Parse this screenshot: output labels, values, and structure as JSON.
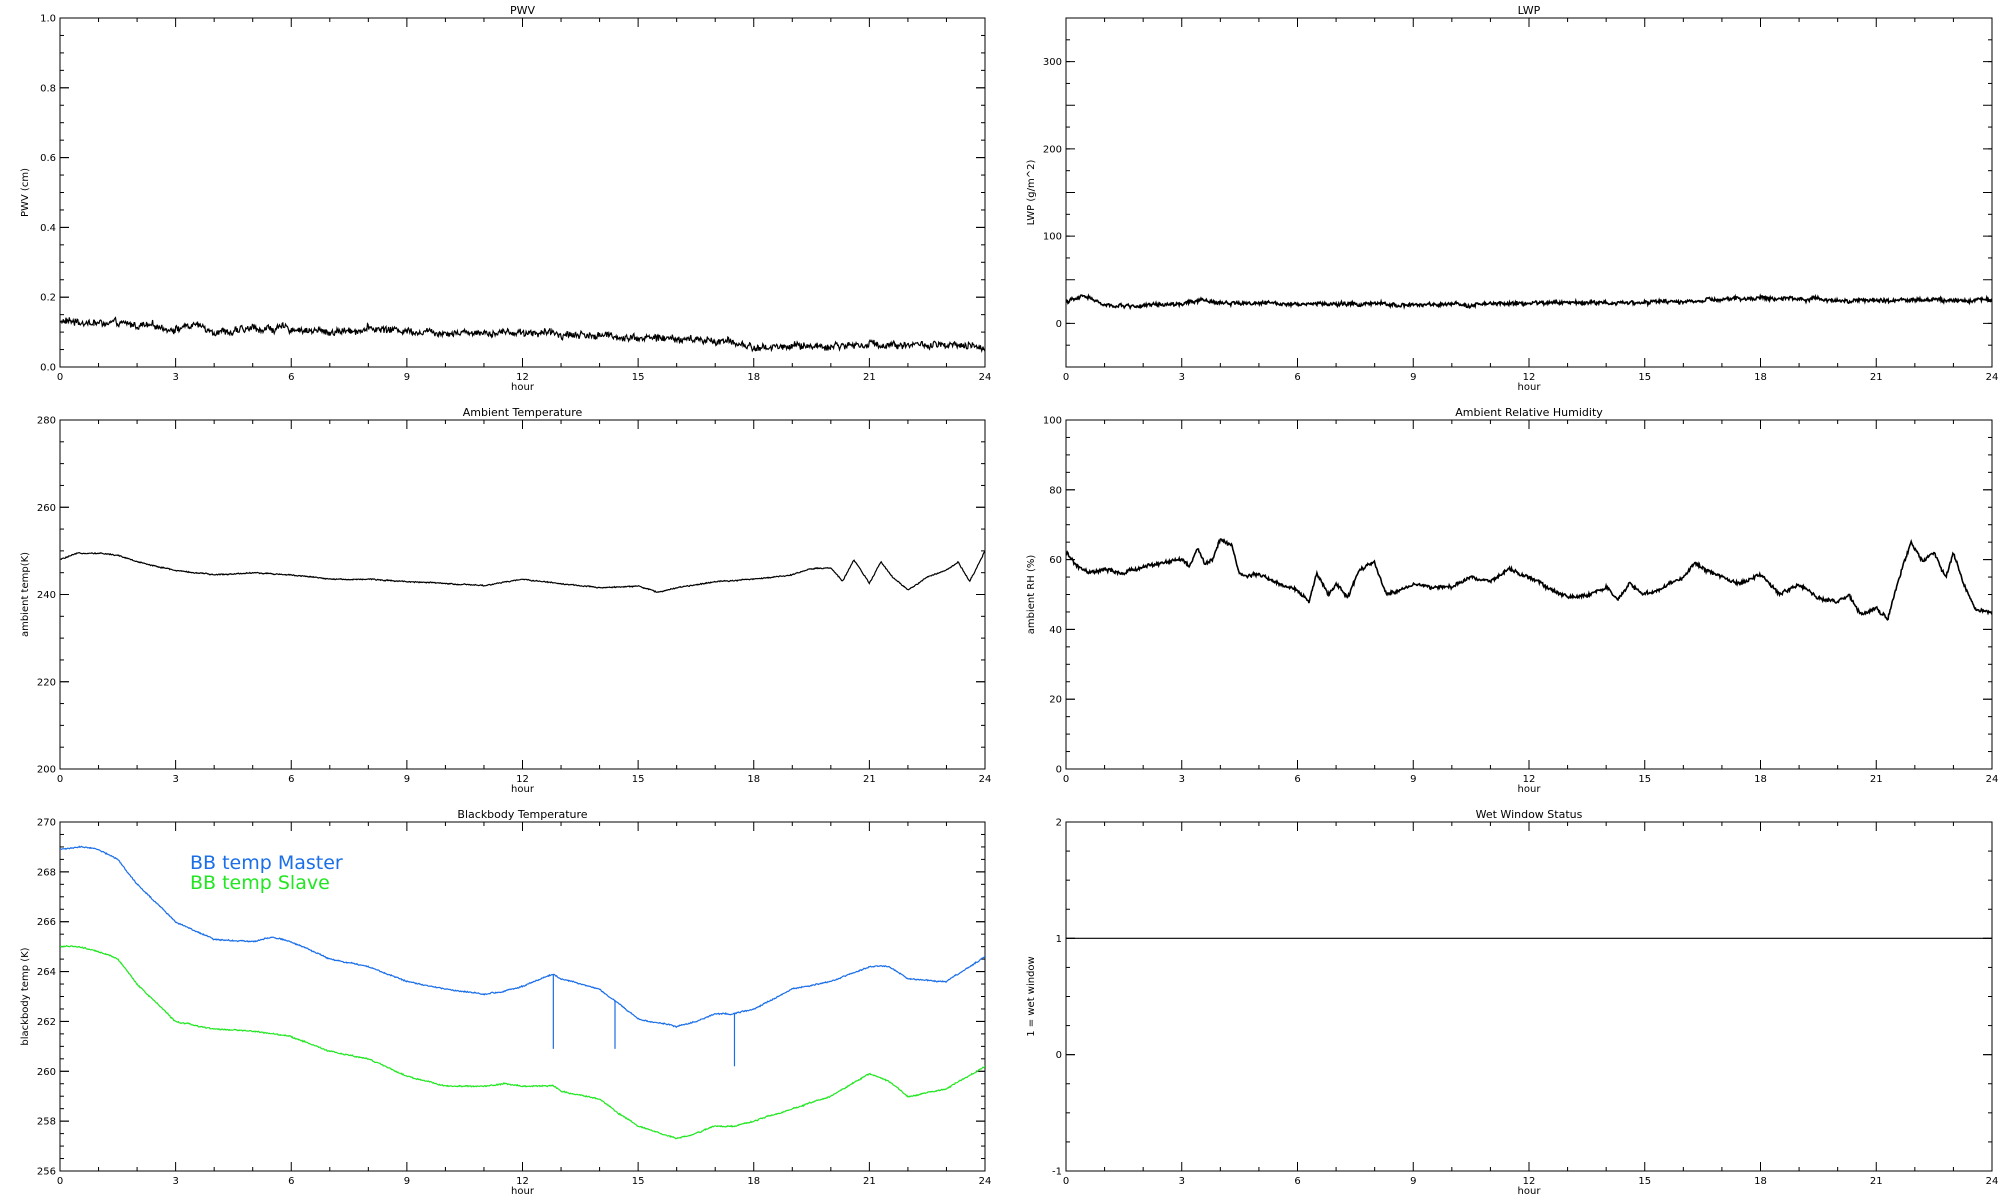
{
  "chart_data": [
    {
      "id": "pwv",
      "type": "line",
      "title": "PWV",
      "xlabel": "hour",
      "ylabel": "PWV (cm)",
      "xlim": [
        0,
        24
      ],
      "ylim": [
        0,
        1
      ],
      "xticks": [
        "0",
        "3",
        "6",
        "9",
        "12",
        "15",
        "18",
        "21",
        "24"
      ],
      "yticks": [
        "0.0",
        "0.2",
        "0.4",
        "0.6",
        "0.8",
        "1.0"
      ],
      "grid": false,
      "noise": 0.012,
      "series": [
        {
          "color": "#000000",
          "x": [
            0,
            0.5,
            1,
            2,
            3,
            3.5,
            4,
            4.5,
            5,
            6,
            7,
            8,
            9,
            10,
            11,
            12,
            13,
            14,
            15,
            16,
            17,
            17.5,
            18,
            19,
            20,
            21,
            22,
            23,
            24
          ],
          "y": [
            0.13,
            0.13,
            0.125,
            0.12,
            0.11,
            0.12,
            0.105,
            0.1,
            0.11,
            0.11,
            0.1,
            0.11,
            0.105,
            0.1,
            0.1,
            0.1,
            0.095,
            0.09,
            0.085,
            0.08,
            0.075,
            0.07,
            0.055,
            0.06,
            0.06,
            0.065,
            0.065,
            0.06,
            0.055
          ]
        }
      ]
    },
    {
      "id": "lwp",
      "type": "line",
      "title": "LWP",
      "xlabel": "hour",
      "ylabel": "LWP (g/m^2)",
      "xlim": [
        0,
        24
      ],
      "ylim": [
        -50,
        350
      ],
      "xticks": [
        "0",
        "3",
        "6",
        "9",
        "12",
        "15",
        "18",
        "21",
        "24"
      ],
      "yticks": [
        "0",
        "100",
        "200",
        "300"
      ],
      "grid": false,
      "noise": 2.5,
      "series": [
        {
          "color": "#000000",
          "x": [
            0,
            0.3,
            0.5,
            0.8,
            1,
            2,
            3,
            3.5,
            4,
            5,
            6,
            7,
            8,
            9,
            10,
            11,
            12,
            13,
            14,
            15,
            16,
            17,
            18,
            19,
            20,
            21,
            22,
            23,
            24
          ],
          "y": [
            25,
            28,
            32,
            25,
            20,
            20,
            22,
            26,
            24,
            23,
            23,
            22,
            22,
            21,
            21,
            22,
            23,
            24,
            24,
            24,
            25,
            27,
            29,
            28,
            27,
            26,
            27,
            27,
            27
          ]
        }
      ]
    },
    {
      "id": "ambient-temp",
      "type": "line",
      "title": "Ambient Temperature",
      "xlabel": "hour",
      "ylabel": "ambient temp(K)",
      "xlim": [
        0,
        24
      ],
      "ylim": [
        200,
        280
      ],
      "xticks": [
        "0",
        "3",
        "6",
        "9",
        "12",
        "15",
        "18",
        "21",
        "24"
      ],
      "yticks": [
        "200",
        "220",
        "240",
        "260",
        "280"
      ],
      "grid": false,
      "noise": 0.15,
      "series": [
        {
          "color": "#000000",
          "x": [
            0,
            0.5,
            1,
            1.5,
            2,
            3,
            4,
            5,
            6,
            7,
            8,
            9,
            10,
            11,
            12,
            13,
            14,
            15,
            15.5,
            16,
            17,
            18,
            19,
            19.5,
            20,
            20.3,
            20.6,
            21,
            21.3,
            21.6,
            22,
            22.5,
            23,
            23.3,
            23.6,
            24
          ],
          "y": [
            248,
            249.5,
            249.5,
            249,
            247.5,
            245.5,
            244.5,
            245,
            244.5,
            243.5,
            243.5,
            243,
            242.5,
            242,
            243.5,
            242.5,
            241.5,
            242,
            240.5,
            241.5,
            243,
            243.5,
            244.5,
            246,
            246,
            243,
            248,
            242.5,
            247.5,
            244,
            241,
            244,
            245.5,
            247.5,
            243,
            250
          ]
        }
      ]
    },
    {
      "id": "ambient-rh",
      "type": "line",
      "title": "Ambient Relative Humidity",
      "xlabel": "hour",
      "ylabel": "ambient RH (%)",
      "xlim": [
        0,
        24
      ],
      "ylim": [
        0,
        100
      ],
      "xticks": [
        "0",
        "3",
        "6",
        "9",
        "12",
        "15",
        "18",
        "21",
        "24"
      ],
      "yticks": [
        "0",
        "20",
        "40",
        "60",
        "80",
        "100"
      ],
      "grid": false,
      "noise": 0.6,
      "series": [
        {
          "color": "#000000",
          "x": [
            0,
            0.3,
            0.6,
            1,
            1.5,
            2,
            2.5,
            3,
            3.2,
            3.4,
            3.6,
            3.8,
            4,
            4.3,
            4.5,
            4.8,
            5,
            5.5,
            6,
            6.3,
            6.5,
            6.8,
            7,
            7.3,
            7.6,
            8,
            8.3,
            8.6,
            9,
            9.5,
            10,
            10.5,
            11,
            11.5,
            12,
            12.5,
            13,
            13.5,
            14,
            14.3,
            14.6,
            15,
            15.5,
            16,
            16.3,
            16.6,
            17,
            17.5,
            18,
            18.5,
            19,
            19.5,
            20,
            20.3,
            20.6,
            21,
            21.3,
            21.6,
            21.9,
            22.2,
            22.5,
            22.8,
            23,
            23.3,
            23.6,
            24
          ],
          "y": [
            62,
            58,
            56,
            57,
            56,
            58,
            59,
            60,
            58,
            63,
            59,
            60,
            66,
            64,
            56,
            55,
            56,
            53,
            51,
            48,
            56,
            50,
            53,
            49,
            57,
            59,
            50,
            51,
            53,
            52,
            52,
            55,
            54,
            57,
            55,
            52,
            49,
            50,
            52,
            48,
            53,
            50,
            52,
            55,
            59,
            57,
            55,
            53,
            56,
            50,
            53,
            49,
            48,
            50,
            44,
            46,
            43,
            55,
            65,
            59,
            62,
            55,
            62,
            52,
            45,
            45
          ]
        }
      ]
    },
    {
      "id": "blackbody-temp",
      "type": "line",
      "title": "Blackbody Temperature",
      "xlabel": "hour",
      "ylabel": "blackbody temp (K)",
      "xlim": [
        0,
        24
      ],
      "ylim": [
        256,
        270
      ],
      "xticks": [
        "0",
        "3",
        "6",
        "9",
        "12",
        "15",
        "18",
        "21",
        "24"
      ],
      "yticks": [
        "256",
        "258",
        "260",
        "262",
        "264",
        "266",
        "268",
        "270"
      ],
      "grid": false,
      "noise": 0.03,
      "legend": {
        "position": "top-left"
      },
      "series": [
        {
          "name": "BB temp Master",
          "color": "#1a6ee8",
          "x": [
            0,
            0.5,
            1,
            1.5,
            2,
            3,
            4,
            5,
            5.5,
            6,
            7,
            8,
            9,
            10,
            11,
            11.5,
            12,
            12.8,
            13,
            14,
            14.5,
            15,
            16,
            16.5,
            17,
            17.5,
            18,
            19,
            20,
            21,
            21.5,
            22,
            23,
            24
          ],
          "y": [
            268.9,
            269,
            268.9,
            268.5,
            267.5,
            266,
            265.3,
            265.2,
            265.4,
            265.2,
            264.5,
            264.2,
            263.6,
            263.3,
            263.1,
            263.2,
            263.4,
            263.9,
            263.7,
            263.3,
            262.7,
            262.1,
            261.8,
            262,
            262.3,
            262.3,
            262.5,
            263.3,
            263.6,
            264.2,
            264.2,
            263.7,
            263.6,
            264.6
          ],
          "spikes": [
            [
              12.8,
              260.9
            ],
            [
              14.4,
              260.9
            ],
            [
              17.5,
              260.2
            ]
          ]
        },
        {
          "name": "BB temp Slave",
          "color": "#22e622",
          "x": [
            0,
            0.5,
            1,
            1.5,
            2,
            3,
            4,
            5,
            5.5,
            6,
            7,
            8,
            9,
            10,
            11,
            11.5,
            12,
            12.8,
            13,
            14,
            14.5,
            15,
            16,
            16.5,
            17,
            17.5,
            18,
            19,
            20,
            21,
            21.5,
            22,
            23,
            24
          ],
          "y": [
            265,
            265,
            264.8,
            264.5,
            263.5,
            262,
            261.7,
            261.6,
            261.5,
            261.4,
            260.8,
            260.5,
            259.8,
            259.4,
            259.4,
            259.5,
            259.4,
            259.4,
            259.2,
            258.9,
            258.3,
            257.8,
            257.3,
            257.5,
            257.8,
            257.8,
            258,
            258.5,
            259,
            259.9,
            259.6,
            259,
            259.3,
            260.2
          ]
        }
      ]
    },
    {
      "id": "wet-window",
      "type": "line",
      "title": "Wet Window Status",
      "xlabel": "hour",
      "ylabel": "1 = wet window",
      "xlim": [
        0,
        24
      ],
      "ylim": [
        -1,
        2
      ],
      "xticks": [
        "0",
        "3",
        "6",
        "9",
        "12",
        "15",
        "18",
        "21",
        "24"
      ],
      "yticks": [
        "-1",
        "0",
        "1",
        "2"
      ],
      "grid": false,
      "noise": 0,
      "series": [
        {
          "color": "#000000",
          "x": [
            0,
            24
          ],
          "y": [
            1,
            1
          ]
        }
      ]
    }
  ]
}
